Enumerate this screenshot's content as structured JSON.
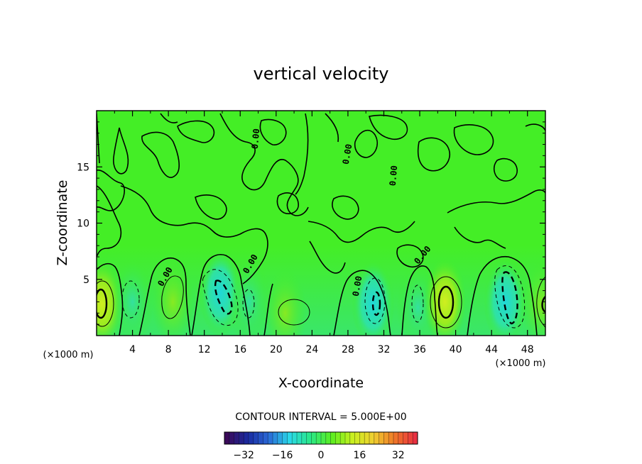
{
  "chart_data": {
    "type": "contour",
    "title": "vertical velocity",
    "xlabel": "X-coordinate",
    "ylabel": "Z-coordinate",
    "x_unit": "(×1000 m)",
    "y_unit": "(×1000 m)",
    "xlim": [
      0,
      50
    ],
    "ylim": [
      0,
      20
    ],
    "x_ticks": [
      "4",
      "8",
      "12",
      "16",
      "20",
      "24",
      "28",
      "32",
      "36",
      "40",
      "44",
      "48"
    ],
    "y_ticks": [
      "5",
      "10",
      "15"
    ],
    "contour_interval_text": "CONTOUR INTERVAL = 5.000E+00",
    "contour_interval": 5,
    "contour_label": "0.00",
    "colorbar": {
      "ticks": [
        "−32",
        "−16",
        "0",
        "16",
        "32"
      ],
      "range": [
        -40,
        40
      ],
      "colors": [
        "#3a0a5a",
        "#1a2aa0",
        "#2a6ad8",
        "#2ad8e8",
        "#2ae888",
        "#5aee20",
        "#c8f020",
        "#f0d030",
        "#f07828",
        "#e83040"
      ]
    },
    "features": [
      {
        "kind": "updraft",
        "x": 0.6,
        "z": 2.8,
        "max": 10
      },
      {
        "kind": "downdraft",
        "x": 4.0,
        "z": 3.0,
        "min": -6
      },
      {
        "kind": "updraft",
        "x": 8.5,
        "z": 3.0,
        "max": 6
      },
      {
        "kind": "downdraft",
        "x": 13.8,
        "z": 3.8,
        "min": -15
      },
      {
        "kind": "downdraft",
        "x": 17.0,
        "z": 3.0,
        "min": -6
      },
      {
        "kind": "updraft",
        "x": 21.0,
        "z": 2.0,
        "max": 5
      },
      {
        "kind": "downdraft",
        "x": 30.8,
        "z": 2.8,
        "min": -12
      },
      {
        "kind": "downdraft",
        "x": 35.8,
        "z": 2.5,
        "min": -6
      },
      {
        "kind": "updraft",
        "x": 38.8,
        "z": 3.0,
        "max": 10
      },
      {
        "kind": "downdraft",
        "x": 45.5,
        "z": 3.0,
        "min": -17
      },
      {
        "kind": "updraft",
        "x": 49.6,
        "z": 2.8,
        "max": 7
      }
    ]
  }
}
